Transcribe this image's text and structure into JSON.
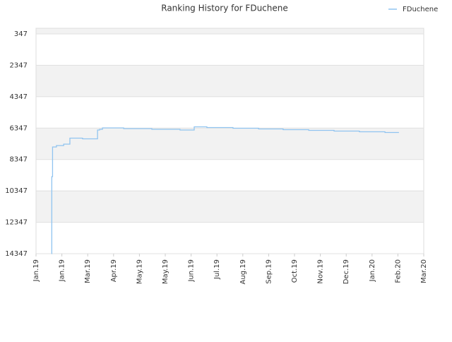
{
  "chart_data": {
    "type": "line",
    "title": "Ranking History for FDuchene",
    "ylim": [
      14347,
      -13
    ],
    "yticks": [
      347,
      2347,
      4347,
      6347,
      8347,
      10347,
      12347,
      14347
    ],
    "xlim": [
      0,
      15
    ],
    "xticks": [
      {
        "value": 0,
        "label": "Jan.19"
      },
      {
        "value": 1,
        "label": "Jan.19"
      },
      {
        "value": 2,
        "label": "Mar.19"
      },
      {
        "value": 3,
        "label": "Apr.19"
      },
      {
        "value": 4,
        "label": "May.19"
      },
      {
        "value": 5,
        "label": "May.19"
      },
      {
        "value": 6,
        "label": "Jun.19"
      },
      {
        "value": 7,
        "label": "Jul.19"
      },
      {
        "value": 8,
        "label": "Aug.19"
      },
      {
        "value": 9,
        "label": "Sep.19"
      },
      {
        "value": 10,
        "label": "Oct.19"
      },
      {
        "value": 11,
        "label": "Nov.19"
      },
      {
        "value": 12,
        "label": "Dec.19"
      },
      {
        "value": 13,
        "label": "Jan.20"
      },
      {
        "value": 14,
        "label": "Feb.20"
      },
      {
        "value": 15,
        "label": "Mar.20"
      }
    ],
    "grid": true,
    "step": true,
    "legend": "top-right",
    "series": [
      {
        "name": "FDuchene",
        "color": "#90c4f0",
        "x": [
          0.6,
          0.61,
          0.64,
          0.79,
          1.07,
          1.31,
          1.8,
          2.38,
          2.46,
          2.57,
          3.39,
          4.48,
          5.57,
          6.12,
          6.61,
          7.62,
          8.61,
          9.56,
          10.55,
          11.53,
          12.51,
          13.5,
          14.04
        ],
        "values": [
          14347,
          9441,
          7550,
          7460,
          7370,
          6987,
          7032,
          6469,
          6424,
          6334,
          6379,
          6424,
          6469,
          6267,
          6312,
          6357,
          6402,
          6447,
          6492,
          6537,
          6582,
          6627,
          6627
        ]
      }
    ]
  }
}
